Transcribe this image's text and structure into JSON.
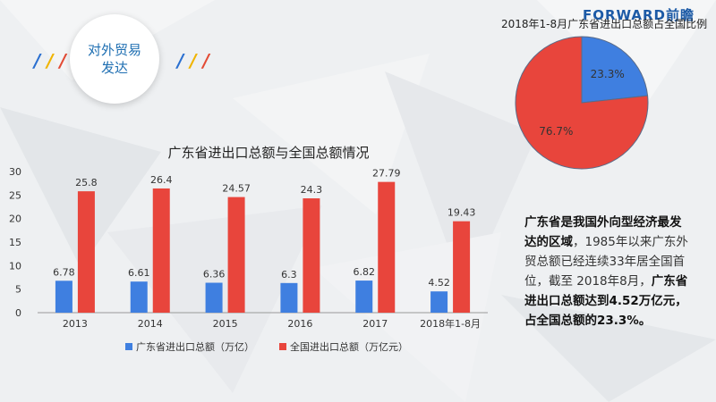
{
  "brand": "FORWARD前瞻",
  "badge": {
    "line1": "对外贸易",
    "line2": "发达"
  },
  "colors": {
    "blue": "#3f7fe0",
    "red": "#e8453c"
  },
  "chart_data": [
    {
      "type": "bar",
      "title": "广东省进出口总额与全国总额情况",
      "categories": [
        "2013",
        "2014",
        "2015",
        "2016",
        "2017",
        "2018年1-8月"
      ],
      "series": [
        {
          "name": "广东省进出口总额（万亿）",
          "values": [
            6.78,
            6.61,
            6.36,
            6.3,
            6.82,
            4.52
          ],
          "color": "#3f7fe0"
        },
        {
          "name": "全国进出口总额（万亿元）",
          "values": [
            25.8,
            26.4,
            24.57,
            24.3,
            27.79,
            19.43
          ],
          "color": "#e8453c"
        }
      ],
      "value_labels": [
        [
          "6.78",
          "6.61",
          "6.36",
          "6.3",
          "6.82",
          "4.52"
        ],
        [
          "25.8",
          "26.4",
          "24.57",
          "24.3",
          "27.79",
          "19.43"
        ]
      ],
      "ylim": [
        0,
        30
      ],
      "yticks": [
        "0",
        "5",
        "10",
        "15",
        "20",
        "25",
        "30"
      ],
      "legend": "bottom"
    },
    {
      "type": "pie",
      "title": "2018年1-8月广东省进出口总额占全国比例",
      "slices": [
        {
          "value": 23.3,
          "label": "23.3%",
          "color": "#3f7fe0"
        },
        {
          "value": 76.7,
          "label": "76.7%",
          "color": "#e8453c"
        }
      ]
    }
  ],
  "desc": {
    "p1": "广东省是我国外向型经济最发达的区域",
    "p2": "，1985年以来广东外贸总额已经连续33年居全国首位，截至 2018年8月，",
    "p3": "广东省进出口总额达到4.52万亿元，占全国总额的23.3%。"
  }
}
